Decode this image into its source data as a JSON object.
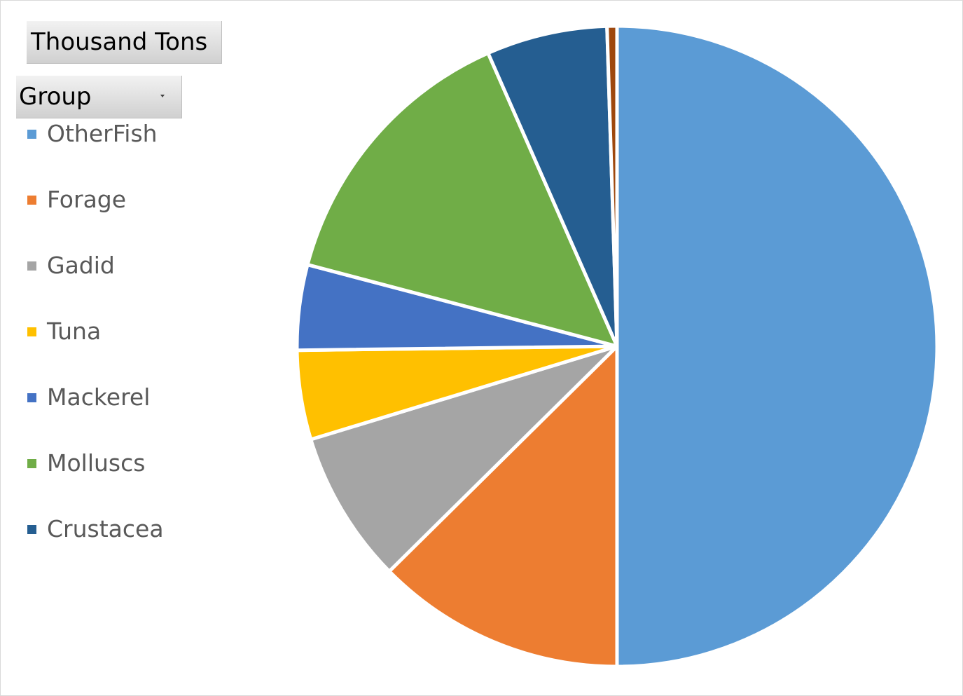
{
  "pivot": {
    "value_field": "Thousand Tons",
    "axis_field": "Group"
  },
  "chart_data": {
    "type": "pie",
    "title": "",
    "categories": [
      "OtherFish",
      "Forage",
      "Gadid",
      "Tuna",
      "Mackerel",
      "Molluscs",
      "Crustacea",
      ""
    ],
    "values": [
      50.0,
      12.6,
      7.7,
      4.5,
      4.3,
      14.3,
      6.1,
      0.5
    ],
    "colors": [
      "#5b9bd5",
      "#ed7d31",
      "#a5a5a5",
      "#ffc000",
      "#4472c4",
      "#70ad47",
      "#255e91",
      "#9e480e"
    ],
    "legend": {
      "position": "left",
      "entries": [
        {
          "label": "OtherFish",
          "color": "#5b9bd5"
        },
        {
          "label": "Forage",
          "color": "#ed7d31"
        },
        {
          "label": "Gadid",
          "color": "#a5a5a5"
        },
        {
          "label": "Tuna",
          "color": "#ffc000"
        },
        {
          "label": "Mackerel",
          "color": "#4472c4"
        },
        {
          "label": "Molluscs",
          "color": "#70ad47"
        },
        {
          "label": "Crustacea",
          "color": "#255e91"
        }
      ]
    }
  }
}
